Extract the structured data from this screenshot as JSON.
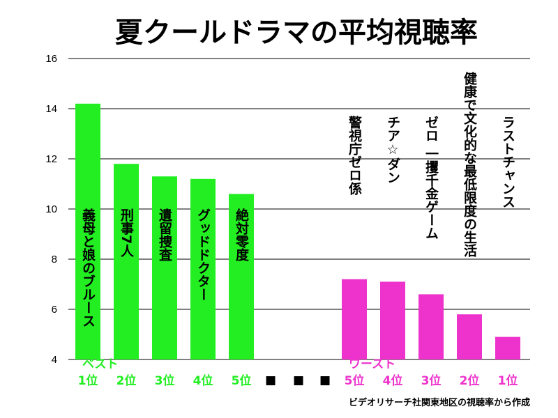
{
  "chart_data": {
    "type": "bar",
    "title": "夏クールドラマの平均視聴率",
    "ylim": [
      4,
      16
    ],
    "yticks": [
      "4",
      "6",
      "8",
      "10",
      "12",
      "14",
      "16"
    ],
    "grid": true,
    "source": "ビデオリサーチ社関東地区の視聴率から作成",
    "separator": [
      "■",
      "■",
      "■"
    ],
    "colors": {
      "best": "#22ee22",
      "worst": "#ee33cc",
      "grid": "#000000"
    },
    "groups": [
      {
        "name": "ベスト",
        "color": "#22ee22",
        "bars": [
          {
            "label": "義母と娘のブルース",
            "rank": "1位",
            "value": 14.2
          },
          {
            "label": "刑事7人",
            "rank": "2位",
            "value": 11.8
          },
          {
            "label": "遺留捜査",
            "rank": "3位",
            "value": 11.3
          },
          {
            "label": "グッドドクター",
            "rank": "4位",
            "value": 11.2
          },
          {
            "label": "絶対零度",
            "rank": "5位",
            "value": 10.6
          }
        ]
      },
      {
        "name": "ワースト",
        "color": "#ee33cc",
        "bars": [
          {
            "label": "警視庁ゼロ係",
            "rank": "5位",
            "value": 7.2
          },
          {
            "label": "チア☆ダン",
            "rank": "4位",
            "value": 7.1
          },
          {
            "label": "ゼロ 一攫千金ゲーム",
            "rank": "3位",
            "value": 6.6
          },
          {
            "label": "健康で文化的な最低限度の生活",
            "rank": "2位",
            "value": 5.8
          },
          {
            "label": "ラストチャンス",
            "rank": "1位",
            "value": 4.9
          }
        ]
      }
    ]
  }
}
